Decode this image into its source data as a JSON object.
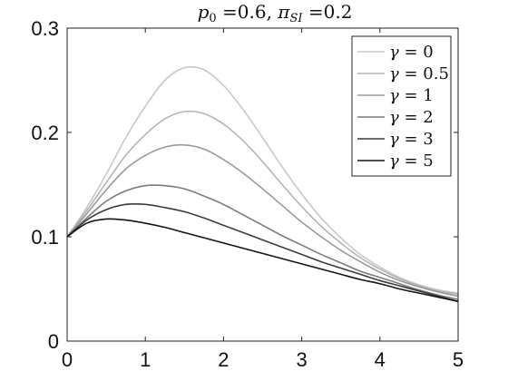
{
  "chart_data": {
    "type": "line",
    "title": "p0 =0.6,  πSI =0.2",
    "title_parts": {
      "p_var": "p",
      "p_sub": "0",
      "p_val": " =0.6,  ",
      "pi_var": "π",
      "pi_sub": "SI",
      "pi_val": " =0.2"
    },
    "xlabel": "",
    "ylabel": "",
    "xlim": [
      0,
      5
    ],
    "ylim": [
      0,
      0.3
    ],
    "xticks": [
      0,
      1,
      2,
      3,
      4,
      5
    ],
    "yticks": [
      0,
      0.1,
      0.2,
      0.3
    ],
    "xtick_labels": [
      "0",
      "1",
      "2",
      "3",
      "4",
      "5"
    ],
    "ytick_labels": [
      "0",
      "0.1",
      "0.2",
      "0.3"
    ],
    "grid": false,
    "legend_position": "top-right",
    "x": [
      0,
      0.25,
      0.5,
      0.75,
      1,
      1.25,
      1.5,
      1.75,
      2,
      2.25,
      2.5,
      2.75,
      3,
      3.25,
      3.5,
      3.75,
      4,
      4.25,
      4.5,
      4.75,
      5
    ],
    "series": [
      {
        "name": "γ = 0",
        "greek": "γ",
        "eq": " = 0",
        "color": "#c8c8c8",
        "values": [
          0.1,
          0.128,
          0.16,
          0.195,
          0.225,
          0.25,
          0.262,
          0.26,
          0.245,
          0.222,
          0.195,
          0.167,
          0.141,
          0.118,
          0.099,
          0.083,
          0.071,
          0.061,
          0.054,
          0.049,
          0.046
        ]
      },
      {
        "name": "γ = 0.5",
        "greek": "γ",
        "eq": " = 0.5",
        "color": "#b4b4b4",
        "values": [
          0.1,
          0.125,
          0.152,
          0.178,
          0.198,
          0.213,
          0.22,
          0.218,
          0.208,
          0.192,
          0.172,
          0.15,
          0.129,
          0.11,
          0.094,
          0.08,
          0.069,
          0.06,
          0.053,
          0.048,
          0.045
        ]
      },
      {
        "name": "γ = 1",
        "greek": "γ",
        "eq": " = 1",
        "color": "#9a9a9a",
        "values": [
          0.1,
          0.122,
          0.145,
          0.165,
          0.178,
          0.186,
          0.188,
          0.184,
          0.174,
          0.161,
          0.146,
          0.13,
          0.114,
          0.1,
          0.087,
          0.076,
          0.066,
          0.058,
          0.052,
          0.047,
          0.043
        ]
      },
      {
        "name": "γ = 2",
        "greek": "γ",
        "eq": " = 2",
        "color": "#7c7c7c",
        "values": [
          0.1,
          0.118,
          0.134,
          0.144,
          0.149,
          0.149,
          0.146,
          0.139,
          0.131,
          0.121,
          0.111,
          0.101,
          0.092,
          0.083,
          0.075,
          0.067,
          0.061,
          0.055,
          0.049,
          0.044,
          0.04
        ]
      },
      {
        "name": "γ = 3",
        "greek": "γ",
        "eq": " = 3",
        "color": "#3c3c3c",
        "values": [
          0.1,
          0.116,
          0.126,
          0.131,
          0.131,
          0.128,
          0.124,
          0.118,
          0.111,
          0.104,
          0.097,
          0.09,
          0.083,
          0.076,
          0.07,
          0.064,
          0.058,
          0.053,
          0.048,
          0.043,
          0.038
        ]
      },
      {
        "name": "γ = 5",
        "greek": "γ",
        "eq": " = 5",
        "color": "#141414",
        "values": [
          0.1,
          0.113,
          0.117,
          0.116,
          0.113,
          0.109,
          0.104,
          0.099,
          0.094,
          0.089,
          0.084,
          0.079,
          0.074,
          0.069,
          0.064,
          0.059,
          0.055,
          0.05,
          0.046,
          0.042,
          0.038
        ]
      }
    ]
  }
}
